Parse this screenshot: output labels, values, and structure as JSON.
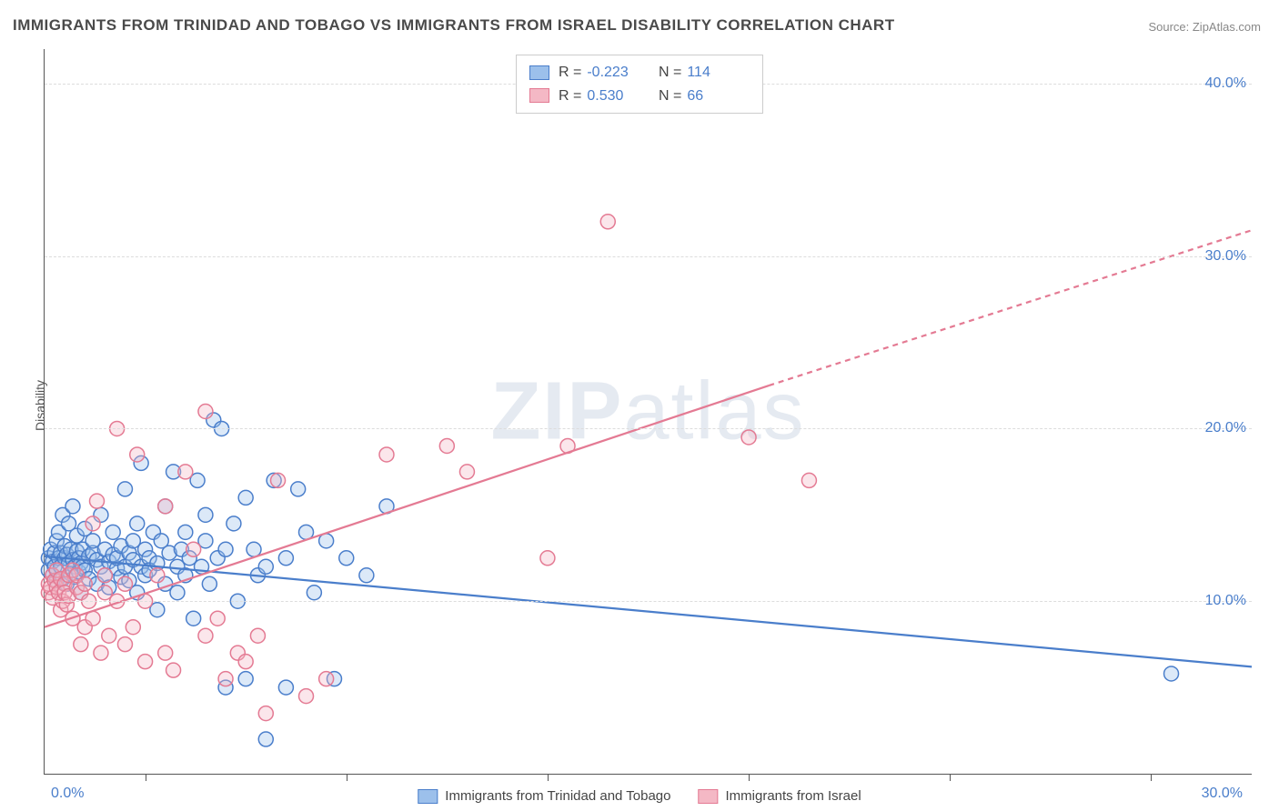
{
  "title": "IMMIGRANTS FROM TRINIDAD AND TOBAGO VS IMMIGRANTS FROM ISRAEL DISABILITY CORRELATION CHART",
  "source_prefix": "Source: ",
  "source_name": "ZipAtlas.com",
  "ylabel": "Disability",
  "watermark": "ZIPatlas",
  "chart": {
    "type": "scatter",
    "x_domain": [
      0,
      30
    ],
    "y_domain": [
      0,
      42
    ],
    "x_ticks_minor": [
      2.5,
      7.5,
      12.5,
      17.5,
      22.5,
      27.5
    ],
    "y_grid": [
      10,
      20,
      30,
      40
    ],
    "x_tick_labels": {
      "min": "0.0%",
      "max": "30.0%"
    },
    "y_tick_labels": [
      "10.0%",
      "20.0%",
      "30.0%",
      "40.0%"
    ],
    "background_color": "#ffffff",
    "grid_color": "#dddddd",
    "axis_color": "#555555",
    "label_color": "#4a7ecb",
    "marker_radius": 8,
    "marker_fill_opacity": 0.35,
    "marker_stroke_width": 1.5,
    "line_width": 2.2
  },
  "series": [
    {
      "name": "Immigrants from Trinidad and Tobago",
      "fill": "#9cc0eb",
      "stroke": "#4a7ecb",
      "R": "-0.223",
      "N": "114",
      "trend": {
        "x1": 0,
        "y1": 12.6,
        "x2_solid": 30,
        "y2_solid": 6.2,
        "x2_dash": 30,
        "y2_dash": 6.2
      },
      "points": [
        [
          0.1,
          12.5
        ],
        [
          0.1,
          11.8
        ],
        [
          0.15,
          13.0
        ],
        [
          0.2,
          12.3
        ],
        [
          0.2,
          11.5
        ],
        [
          0.25,
          12.8
        ],
        [
          0.25,
          12.0
        ],
        [
          0.3,
          13.5
        ],
        [
          0.3,
          11.2
        ],
        [
          0.35,
          12.5
        ],
        [
          0.35,
          14.0
        ],
        [
          0.4,
          12.0
        ],
        [
          0.4,
          12.8
        ],
        [
          0.45,
          15.0
        ],
        [
          0.45,
          11.3
        ],
        [
          0.5,
          12.5
        ],
        [
          0.5,
          13.2
        ],
        [
          0.55,
          11.0
        ],
        [
          0.55,
          12.7
        ],
        [
          0.6,
          14.5
        ],
        [
          0.6,
          12.2
        ],
        [
          0.65,
          11.6
        ],
        [
          0.65,
          13.0
        ],
        [
          0.7,
          12.4
        ],
        [
          0.7,
          15.5
        ],
        [
          0.75,
          12.0
        ],
        [
          0.75,
          11.4
        ],
        [
          0.8,
          12.9
        ],
        [
          0.8,
          13.8
        ],
        [
          0.85,
          11.7
        ],
        [
          0.85,
          12.5
        ],
        [
          0.9,
          12.2
        ],
        [
          0.9,
          10.5
        ],
        [
          0.95,
          13.0
        ],
        [
          0.95,
          12.0
        ],
        [
          1.0,
          11.8
        ],
        [
          1.0,
          14.2
        ],
        [
          1.1,
          12.6
        ],
        [
          1.1,
          11.3
        ],
        [
          1.2,
          12.8
        ],
        [
          1.2,
          13.5
        ],
        [
          1.3,
          11.0
        ],
        [
          1.3,
          12.4
        ],
        [
          1.4,
          12.0
        ],
        [
          1.4,
          15.0
        ],
        [
          1.5,
          11.5
        ],
        [
          1.5,
          13.0
        ],
        [
          1.6,
          12.3
        ],
        [
          1.6,
          10.8
        ],
        [
          1.7,
          12.7
        ],
        [
          1.7,
          14.0
        ],
        [
          1.8,
          11.9
        ],
        [
          1.8,
          12.5
        ],
        [
          1.9,
          13.2
        ],
        [
          1.9,
          11.4
        ],
        [
          2.0,
          12.0
        ],
        [
          2.0,
          16.5
        ],
        [
          2.1,
          12.8
        ],
        [
          2.1,
          11.2
        ],
        [
          2.2,
          13.5
        ],
        [
          2.2,
          12.4
        ],
        [
          2.3,
          10.5
        ],
        [
          2.3,
          14.5
        ],
        [
          2.4,
          12.0
        ],
        [
          2.4,
          18.0
        ],
        [
          2.5,
          11.5
        ],
        [
          2.5,
          13.0
        ],
        [
          2.6,
          12.5
        ],
        [
          2.6,
          11.8
        ],
        [
          2.7,
          14.0
        ],
        [
          2.8,
          12.2
        ],
        [
          2.8,
          9.5
        ],
        [
          2.9,
          13.5
        ],
        [
          3.0,
          11.0
        ],
        [
          3.0,
          15.5
        ],
        [
          3.1,
          12.8
        ],
        [
          3.2,
          17.5
        ],
        [
          3.3,
          10.5
        ],
        [
          3.3,
          12.0
        ],
        [
          3.4,
          13.0
        ],
        [
          3.5,
          11.5
        ],
        [
          3.5,
          14.0
        ],
        [
          3.6,
          12.5
        ],
        [
          3.7,
          9.0
        ],
        [
          3.8,
          17.0
        ],
        [
          3.9,
          12.0
        ],
        [
          4.0,
          13.5
        ],
        [
          4.0,
          15.0
        ],
        [
          4.1,
          11.0
        ],
        [
          4.2,
          20.5
        ],
        [
          4.3,
          12.5
        ],
        [
          4.4,
          20.0
        ],
        [
          4.5,
          5.0
        ],
        [
          4.5,
          13.0
        ],
        [
          4.7,
          14.5
        ],
        [
          4.8,
          10.0
        ],
        [
          5.0,
          16.0
        ],
        [
          5.0,
          5.5
        ],
        [
          5.2,
          13.0
        ],
        [
          5.3,
          11.5
        ],
        [
          5.5,
          2.0
        ],
        [
          5.5,
          12.0
        ],
        [
          5.7,
          17.0
        ],
        [
          6.0,
          5.0
        ],
        [
          6.0,
          12.5
        ],
        [
          6.3,
          16.5
        ],
        [
          6.5,
          14.0
        ],
        [
          6.7,
          10.5
        ],
        [
          7.0,
          13.5
        ],
        [
          7.2,
          5.5
        ],
        [
          7.5,
          12.5
        ],
        [
          8.0,
          11.5
        ],
        [
          8.5,
          15.5
        ],
        [
          28.0,
          5.8
        ]
      ]
    },
    {
      "name": "Immigrants from Israel",
      "fill": "#f4b8c5",
      "stroke": "#e47a93",
      "R": "0.530",
      "N": "66",
      "trend": {
        "x1": 0,
        "y1": 8.5,
        "x2_solid": 18,
        "y2_solid": 22.5,
        "x2_dash": 30,
        "y2_dash": 31.5
      },
      "points": [
        [
          0.1,
          10.5
        ],
        [
          0.1,
          11.0
        ],
        [
          0.15,
          10.8
        ],
        [
          0.2,
          11.5
        ],
        [
          0.2,
          10.2
        ],
        [
          0.25,
          11.2
        ],
        [
          0.3,
          10.8
        ],
        [
          0.3,
          11.8
        ],
        [
          0.35,
          10.5
        ],
        [
          0.4,
          11.3
        ],
        [
          0.4,
          9.5
        ],
        [
          0.45,
          10.0
        ],
        [
          0.5,
          11.0
        ],
        [
          0.5,
          10.5
        ],
        [
          0.55,
          9.8
        ],
        [
          0.6,
          11.5
        ],
        [
          0.6,
          10.3
        ],
        [
          0.7,
          11.8
        ],
        [
          0.7,
          9.0
        ],
        [
          0.8,
          10.8
        ],
        [
          0.8,
          11.5
        ],
        [
          0.9,
          7.5
        ],
        [
          0.9,
          10.5
        ],
        [
          1.0,
          11.0
        ],
        [
          1.0,
          8.5
        ],
        [
          1.1,
          10.0
        ],
        [
          1.2,
          14.5
        ],
        [
          1.2,
          9.0
        ],
        [
          1.3,
          15.8
        ],
        [
          1.4,
          7.0
        ],
        [
          1.5,
          10.5
        ],
        [
          1.5,
          11.5
        ],
        [
          1.6,
          8.0
        ],
        [
          1.8,
          10.0
        ],
        [
          1.8,
          20.0
        ],
        [
          2.0,
          7.5
        ],
        [
          2.0,
          11.0
        ],
        [
          2.2,
          8.5
        ],
        [
          2.3,
          18.5
        ],
        [
          2.5,
          6.5
        ],
        [
          2.5,
          10.0
        ],
        [
          2.8,
          11.5
        ],
        [
          3.0,
          7.0
        ],
        [
          3.0,
          15.5
        ],
        [
          3.2,
          6.0
        ],
        [
          3.5,
          17.5
        ],
        [
          3.7,
          13.0
        ],
        [
          4.0,
          21.0
        ],
        [
          4.0,
          8.0
        ],
        [
          4.3,
          9.0
        ],
        [
          4.5,
          5.5
        ],
        [
          4.8,
          7.0
        ],
        [
          5.0,
          6.5
        ],
        [
          5.3,
          8.0
        ],
        [
          5.5,
          3.5
        ],
        [
          5.8,
          17.0
        ],
        [
          6.5,
          4.5
        ],
        [
          7.0,
          5.5
        ],
        [
          8.5,
          18.5
        ],
        [
          10.0,
          19.0
        ],
        [
          10.5,
          17.5
        ],
        [
          12.5,
          12.5
        ],
        [
          13.0,
          19.0
        ],
        [
          14.0,
          32.0
        ],
        [
          17.5,
          19.5
        ],
        [
          19.0,
          17.0
        ]
      ]
    }
  ],
  "stats_labels": {
    "R": "R =",
    "N": "N ="
  },
  "legend": {
    "items": [
      {
        "label": "Immigrants from Trinidad and Tobago",
        "fill": "#9cc0eb",
        "stroke": "#4a7ecb"
      },
      {
        "label": "Immigrants from Israel",
        "fill": "#f4b8c5",
        "stroke": "#e47a93"
      }
    ]
  }
}
